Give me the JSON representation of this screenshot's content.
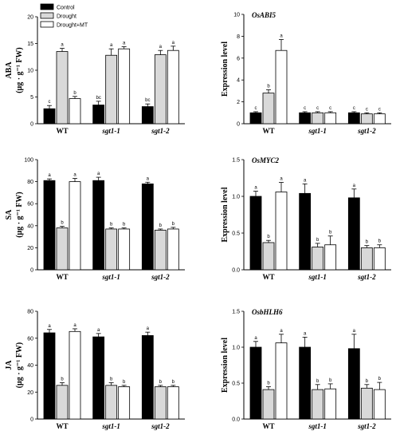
{
  "groups": [
    "WT",
    "sgt1-1",
    "sgt1-2"
  ],
  "legend": [
    "Control",
    "Drought",
    "Drought+MT"
  ],
  "colors": {
    "bar_fills": [
      "#000000",
      "#d9d9d9",
      "#ffffff"
    ],
    "stroke": "#000000"
  },
  "chart_data": [
    {
      "type": "bar",
      "title": "",
      "ylabel_line1": "ABA",
      "ylabel_line2": "(μg · g⁻¹ FW)",
      "ylim": [
        0,
        20
      ],
      "yticks": [
        0,
        5,
        10,
        15,
        20
      ],
      "categories": [
        "WT",
        "sgt1-1",
        "sgt1-2"
      ],
      "series": [
        {
          "name": "Control",
          "values": [
            2.8,
            3.5,
            3.2
          ],
          "errors": [
            0.6,
            0.7,
            0.5
          ],
          "letters": [
            "c",
            "bc",
            "bc"
          ]
        },
        {
          "name": "Drought",
          "values": [
            13.5,
            12.8,
            12.9
          ],
          "errors": [
            0.6,
            1.2,
            0.8
          ],
          "letters": [
            "a",
            "a",
            "a"
          ]
        },
        {
          "name": "Drought+MT",
          "values": [
            4.7,
            14.0,
            13.7
          ],
          "errors": [
            0.4,
            0.4,
            0.8
          ],
          "letters": [
            "b",
            "a",
            "a"
          ]
        }
      ]
    },
    {
      "type": "bar",
      "title": "OsABI5",
      "ylabel_line1": "Expression level",
      "ylabel_line2": "",
      "ylim": [
        0,
        10
      ],
      "yticks": [
        0,
        2,
        4,
        6,
        8,
        10
      ],
      "categories": [
        "WT",
        "sgt1-1",
        "sgt1-2"
      ],
      "series": [
        {
          "name": "Control",
          "values": [
            1.0,
            1.0,
            1.0
          ],
          "errors": [
            0.1,
            0.1,
            0.1
          ],
          "letters": [
            "c",
            "c",
            "c"
          ]
        },
        {
          "name": "Drought",
          "values": [
            2.8,
            1.0,
            0.9
          ],
          "errors": [
            0.3,
            0.1,
            0.1
          ],
          "letters": [
            "b",
            "c",
            "c"
          ]
        },
        {
          "name": "Drought+MT",
          "values": [
            6.7,
            1.0,
            0.9
          ],
          "errors": [
            1.0,
            0.1,
            0.1
          ],
          "letters": [
            "a",
            "c",
            "c"
          ]
        }
      ]
    },
    {
      "type": "bar",
      "title": "",
      "ylabel_line1": "SA",
      "ylabel_line2": "(μg · g⁻¹ FW)",
      "ylim": [
        0,
        100
      ],
      "yticks": [
        0,
        20,
        40,
        60,
        80,
        100
      ],
      "categories": [
        "WT",
        "sgt1-1",
        "sgt1-2"
      ],
      "series": [
        {
          "name": "Control",
          "values": [
            81,
            81,
            78
          ],
          "errors": [
            1.5,
            3.0,
            1.5
          ],
          "letters": [
            "a",
            "a",
            "a"
          ]
        },
        {
          "name": "Drought",
          "values": [
            38,
            37,
            36
          ],
          "errors": [
            1.5,
            1.0,
            1.0
          ],
          "letters": [
            "b",
            "b",
            "b"
          ]
        },
        {
          "name": "Drought+MT",
          "values": [
            80,
            37,
            37
          ],
          "errors": [
            3.0,
            1.0,
            1.5
          ],
          "letters": [
            "a",
            "b",
            "b"
          ]
        }
      ]
    },
    {
      "type": "bar",
      "title": "OsMYC2",
      "ylabel_line1": "Expression level",
      "ylabel_line2": "",
      "ylim": [
        0,
        1.5
      ],
      "yticks": [
        0.0,
        0.5,
        1.0,
        1.5
      ],
      "categories": [
        "WT",
        "sgt1-1",
        "sgt1-2"
      ],
      "series": [
        {
          "name": "Control",
          "values": [
            1.0,
            1.04,
            0.98
          ],
          "errors": [
            0.07,
            0.13,
            0.12
          ],
          "letters": [
            "a",
            "a",
            "a"
          ]
        },
        {
          "name": "Drought",
          "values": [
            0.37,
            0.31,
            0.3
          ],
          "errors": [
            0.03,
            0.05,
            0.03
          ],
          "letters": [
            "b",
            "b",
            "b"
          ]
        },
        {
          "name": "Drought+MT",
          "values": [
            1.06,
            0.34,
            0.3
          ],
          "errors": [
            0.13,
            0.12,
            0.04
          ],
          "letters": [
            "a",
            "b",
            "b"
          ]
        }
      ]
    },
    {
      "type": "bar",
      "title": "",
      "ylabel_line1": "JA",
      "ylabel_line2": "(μg · g⁻¹ FW)",
      "ylim": [
        0,
        80
      ],
      "yticks": [
        0,
        20,
        40,
        60,
        80
      ],
      "categories": [
        "WT",
        "sgt1-1",
        "sgt1-2"
      ],
      "series": [
        {
          "name": "Control",
          "values": [
            64,
            61,
            62
          ],
          "errors": [
            2.5,
            2.5,
            2.5
          ],
          "letters": [
            "a",
            "a",
            "a"
          ]
        },
        {
          "name": "Drought",
          "values": [
            25,
            25,
            24
          ],
          "errors": [
            2.0,
            2.0,
            1.0
          ],
          "letters": [
            "b",
            "b",
            "b"
          ]
        },
        {
          "name": "Drought+MT",
          "values": [
            65,
            24,
            24
          ],
          "errors": [
            2.0,
            1.0,
            1.0
          ],
          "letters": [
            "a",
            "b",
            "b"
          ]
        }
      ]
    },
    {
      "type": "bar",
      "title": "OsbHLH6",
      "ylabel_line1": "Expression level",
      "ylabel_line2": "",
      "ylim": [
        0,
        1.5
      ],
      "yticks": [
        0.0,
        0.5,
        1.0,
        1.5
      ],
      "categories": [
        "WT",
        "sgt1-1",
        "sgt1-2"
      ],
      "series": [
        {
          "name": "Control",
          "values": [
            1.0,
            1.0,
            0.98
          ],
          "errors": [
            0.08,
            0.14,
            0.2
          ],
          "letters": [
            "a",
            "a",
            "a"
          ]
        },
        {
          "name": "Drought",
          "values": [
            0.41,
            0.41,
            0.43
          ],
          "errors": [
            0.04,
            0.07,
            0.05
          ],
          "letters": [
            "b",
            "b",
            "b"
          ]
        },
        {
          "name": "Drought+MT",
          "values": [
            1.06,
            0.42,
            0.41
          ],
          "errors": [
            0.12,
            0.07,
            0.1
          ],
          "letters": [
            "a",
            "b",
            "b"
          ]
        }
      ]
    }
  ]
}
